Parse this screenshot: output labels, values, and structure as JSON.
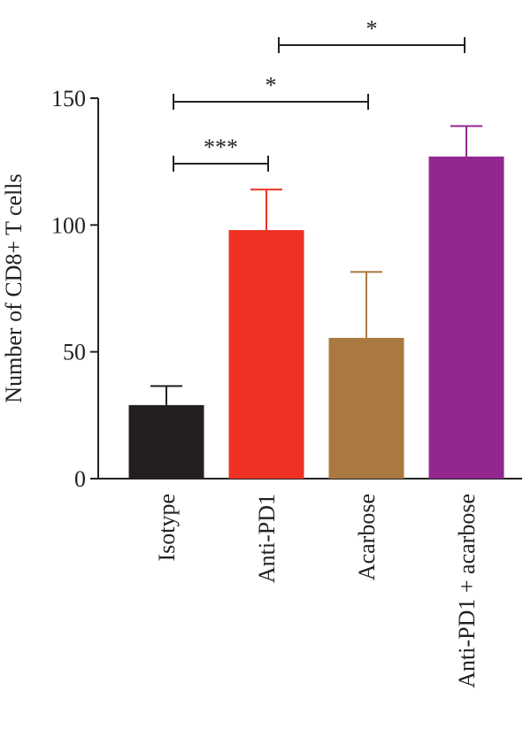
{
  "chart_data": {
    "type": "bar",
    "categories": [
      "Isotype",
      "Anti-PD1",
      "Acarbose",
      "Anti-PD1 + acarbose"
    ],
    "values": [
      29,
      98,
      55.5,
      127
    ],
    "errors": [
      7.5,
      16,
      26,
      12
    ],
    "colors": [
      "#231f20",
      "#ee3124",
      "#a97940",
      "#92278f"
    ],
    "title": "",
    "xlabel": "",
    "ylabel": "Number of CD8+ T cells",
    "ylim": [
      0,
      150
    ],
    "yticks": [
      0,
      50,
      100,
      150
    ],
    "significance": [
      {
        "from": 0,
        "to": 1,
        "label": "***"
      },
      {
        "from": 0,
        "to": 2,
        "label": "*"
      },
      {
        "from": 1,
        "to": 3,
        "label": "*"
      }
    ]
  }
}
